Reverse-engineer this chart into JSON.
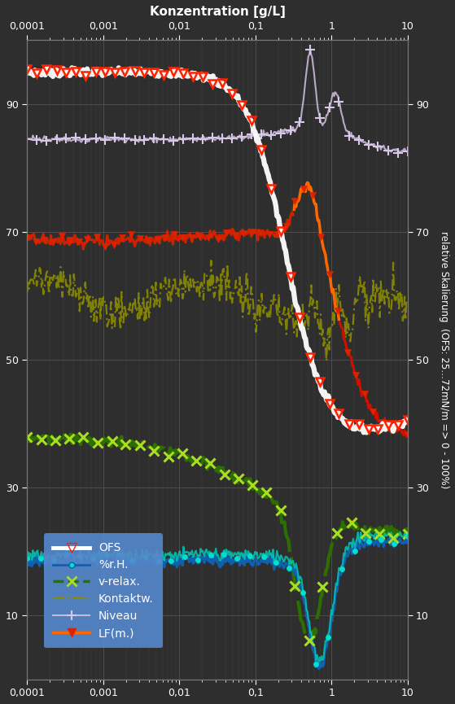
{
  "title_top": "Konzentration [g/L]",
  "ylabel_right": "relative Skalierung  (OFS: 25…72mN/m => 0 - 100%)",
  "xlim": [
    0.0001,
    10
  ],
  "ylim": [
    0,
    100
  ],
  "yticks": [
    10,
    30,
    50,
    70,
    90
  ],
  "bg_color": "#2e2e2e",
  "grid_color": "#555555",
  "legend_bg": "#5588cc"
}
